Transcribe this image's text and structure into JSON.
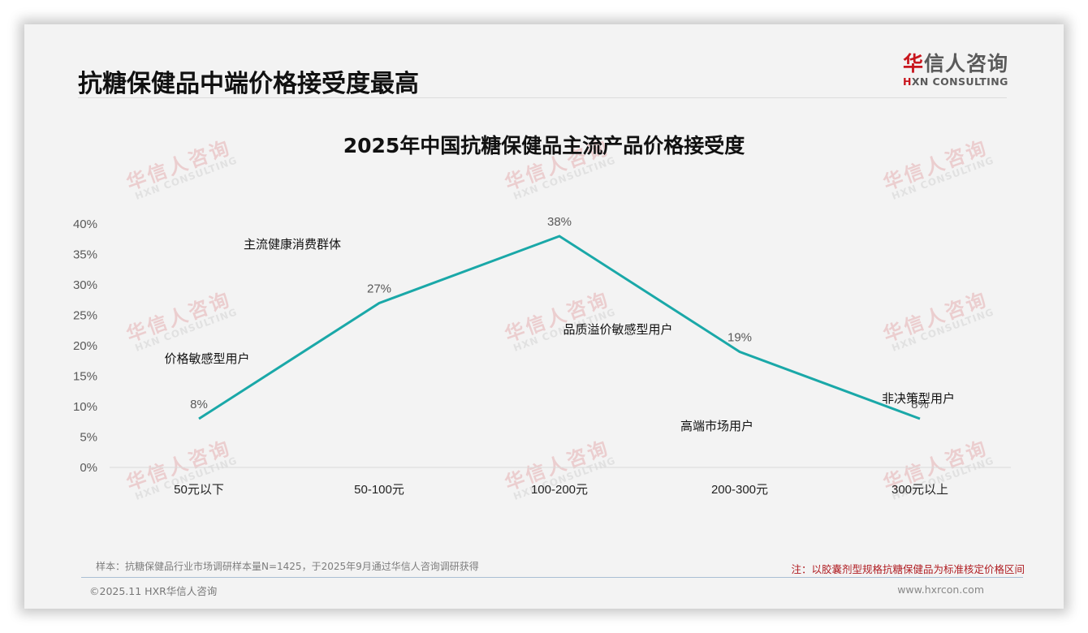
{
  "header": {
    "title": "抗糖保健品中端价格接受度最高",
    "logo_cn_first": "华",
    "logo_cn_rest": "信人咨询",
    "logo_en_first": "H",
    "logo_en_rest": "XN CONSULTING"
  },
  "watermark": {
    "cn": "华信人咨询",
    "en": "HXN CONSULTING"
  },
  "chart_data": {
    "type": "line",
    "title": "2025年中国抗糖保健品主流产品价格接受度",
    "xlabel": "",
    "ylabel": "",
    "categories": [
      "50元以下",
      "50-100元",
      "100-200元",
      "200-300元",
      "300元以上"
    ],
    "series": [
      {
        "name": "价格接受度",
        "values": [
          8,
          27,
          38,
          19,
          8
        ],
        "color": "#1aa8a8"
      }
    ],
    "data_labels": [
      "8%",
      "27%",
      "38%",
      "19%",
      "8%"
    ],
    "ylim": [
      0,
      40
    ],
    "yticks": [
      "0%",
      "5%",
      "10%",
      "15%",
      "20%",
      "25%",
      "30%",
      "35%",
      "40%"
    ],
    "grid": false,
    "legend": "none",
    "annotations": [
      {
        "text": "价格敏感型用户",
        "near": "50元以下"
      },
      {
        "text": "主流健康消费群体",
        "near": "50-100元"
      },
      {
        "text": "品质溢价敏感型用户",
        "near": "100-200元"
      },
      {
        "text": "高端市场用户",
        "near": "200-300元"
      },
      {
        "text": "非决策型用户",
        "near": "300元以上"
      }
    ]
  },
  "footer": {
    "sample_note": "样本：抗糖保健品行业市场调研样本量N=1425，于2025年9月通过华信人咨询调研获得",
    "right_note": "注：以胶囊剂型规格抗糖保健品为标准核定价格区间",
    "copyright": "©2025.11 HXR华信人咨询",
    "website": "www.hxrcon.com"
  }
}
